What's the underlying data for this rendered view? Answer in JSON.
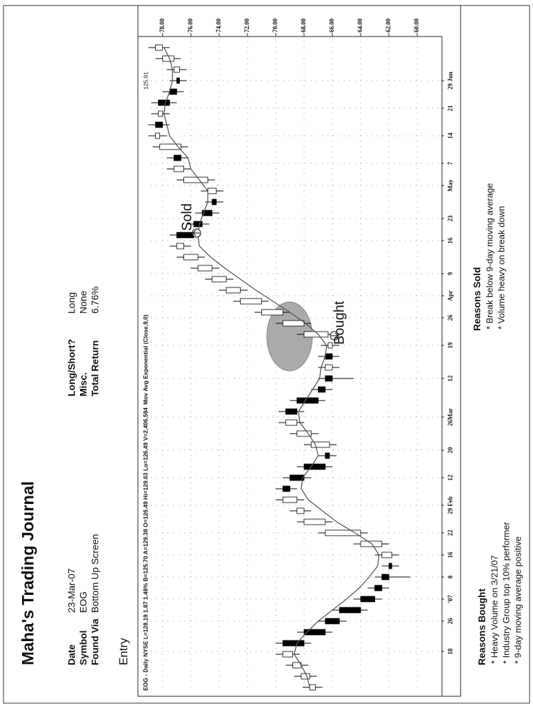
{
  "header": {
    "title": "Maha's Trading Journal"
  },
  "fields": [
    {
      "label": "Date",
      "value": "23-Mar-07"
    },
    {
      "label": "Symbol",
      "value": "EOG"
    },
    {
      "label": "Found Via",
      "value": "Bottom Up Screen"
    },
    {
      "label": "Long/Short?",
      "value": "Long"
    },
    {
      "label": "Misc.",
      "value": "None"
    },
    {
      "label": "Total Return",
      "value": "6.76%"
    }
  ],
  "entry_heading": "Entry",
  "chart_data": {
    "type": "candlestick",
    "title": "EOG - Daily NYSE L=128.19 1.87 1.48% B=125.70 A=129.38 O=126.49 Hi=129.63 Lo=126.49 V=2,406,594",
    "ma_label": "Mov Avg Exponential (Close,9,0)",
    "ma_value_label": "125.91",
    "x": [
      0,
      2,
      4,
      6,
      8,
      10,
      12,
      14,
      16,
      18,
      20,
      22,
      24,
      26,
      28,
      30,
      32,
      34,
      36,
      38,
      40,
      42,
      44,
      46,
      48,
      50,
      52,
      54,
      56,
      58,
      60,
      62,
      64,
      66,
      68,
      70,
      72,
      74,
      76,
      78,
      80,
      82,
      84,
      86,
      88,
      90,
      92,
      94,
      96,
      98,
      100,
      102,
      104,
      106,
      108,
      110,
      112,
      114,
      116
    ],
    "open": [
      67.2,
      67.6,
      68.2,
      68.8,
      69.5,
      68,
      66.5,
      65.5,
      64,
      63,
      62.5,
      62,
      61.8,
      62.5,
      64,
      66.5,
      68,
      68.5,
      69.5,
      69,
      68,
      66.5,
      66.2,
      67.5,
      68.5,
      69.3,
      68.5,
      67,
      66.5,
      66,
      66.5,
      66,
      66.3,
      68,
      69.5,
      71,
      72.5,
      73.5,
      74.5,
      75.5,
      76.5,
      77,
      75.8,
      75.2,
      74.5,
      74.2,
      74.8,
      76.5,
      77.2,
      76.7,
      78.2,
      78.5,
      78,
      78.3,
      77.5,
      77,
      76.8,
      77.2,
      78
    ],
    "high": [
      68.1,
      68.7,
      69.3,
      70,
      70,
      68.5,
      67,
      66,
      64.5,
      63.5,
      63,
      62.5,
      63,
      64.5,
      67,
      68.5,
      69,
      70,
      70,
      69.5,
      68.5,
      67,
      68,
      69,
      69.8,
      69.8,
      69,
      67.5,
      67,
      67,
      67,
      66.8,
      68.5,
      70,
      71.5,
      73,
      74,
      75,
      76,
      77,
      77.5,
      77.5,
      76.3,
      75.7,
      75,
      75.3,
      77,
      77.7,
      77.7,
      78.7,
      79,
      79,
      78.8,
      78.8,
      78,
      77.5,
      77.7,
      78.5,
      79
    ],
    "low": [
      66.7,
      67.1,
      67.7,
      68.3,
      67.5,
      66,
      65,
      63.5,
      62.5,
      62,
      60.5,
      61.3,
      61.3,
      62,
      63.5,
      66,
      67.5,
      68,
      68.5,
      67.5,
      66,
      65.7,
      65.7,
      67,
      68,
      68,
      66.5,
      66,
      64.5,
      65.5,
      65.5,
      65.5,
      65.8,
      67.5,
      69,
      70.5,
      72,
      73,
      74,
      75,
      76,
      75.3,
      74.7,
      74,
      73.7,
      73.7,
      74.3,
      76,
      76.2,
      76.2,
      77.7,
      77.5,
      77.5,
      77,
      76.5,
      76.3,
      76.3,
      76.7,
      77.5
    ],
    "close": [
      67.6,
      68.2,
      68.8,
      69.5,
      68,
      66.5,
      65.5,
      64,
      63,
      62.5,
      62,
      61.8,
      62.5,
      64,
      66.5,
      68,
      68.5,
      69.5,
      69,
      68,
      66.5,
      66.2,
      67.5,
      68.5,
      69.3,
      68.5,
      67,
      66.5,
      66,
      66.5,
      66,
      66.3,
      68,
      69.5,
      71,
      72.5,
      73.5,
      74.5,
      75.5,
      76.5,
      77,
      75.8,
      75.2,
      74.5,
      74.2,
      74.8,
      76.5,
      77.2,
      76.7,
      78.2,
      78.5,
      78,
      78.3,
      77.5,
      77,
      76.8,
      77.2,
      78,
      78.5
    ],
    "up_color": "#ffffff",
    "down_color": "#000000",
    "ma": {
      "color": "#555555",
      "values": [
        67.6,
        67.8,
        68.2,
        68.7,
        68.5,
        67.8,
        67,
        66,
        65,
        64.1,
        63.4,
        62.8,
        62.7,
        63.2,
        64.4,
        65.7,
        66.7,
        67.7,
        68.2,
        68.1,
        67.5,
        67,
        67.2,
        67.7,
        68.3,
        68.4,
        67.9,
        67.4,
        66.9,
        66.8,
        66.5,
        66.4,
        67,
        67.9,
        69,
        70.2,
        71.4,
        72.5,
        73.6,
        74.6,
        75.4,
        75.5,
        75.4,
        75.1,
        74.8,
        74.8,
        75.4,
        76,
        76.2,
        76.9,
        77.5,
        77.7,
        77.9,
        77.8,
        77.5,
        77.3,
        77.3,
        77.5,
        77.9
      ]
    },
    "xlim": [
      0,
      118
    ],
    "xticks": [
      {
        "value": 6.5,
        "label": "18"
      },
      {
        "value": 12,
        "label": "26"
      },
      {
        "value": 16,
        "label": "'07"
      },
      {
        "value": 20,
        "label": "8"
      },
      {
        "value": 24,
        "label": "16"
      },
      {
        "value": 28,
        "label": "22"
      },
      {
        "value": 33,
        "label": "29 Feb"
      },
      {
        "value": 38,
        "label": "12"
      },
      {
        "value": 43,
        "label": "20"
      },
      {
        "value": 49,
        "label": "26Mar"
      },
      {
        "value": 56,
        "label": "12"
      },
      {
        "value": 62,
        "label": "19"
      },
      {
        "value": 67,
        "label": "26"
      },
      {
        "value": 71,
        "label": "Apr"
      },
      {
        "value": 75,
        "label": "9"
      },
      {
        "value": 81,
        "label": "16"
      },
      {
        "value": 85,
        "label": "23"
      },
      {
        "value": 91,
        "label": "May"
      },
      {
        "value": 95,
        "label": "7"
      },
      {
        "value": 100,
        "label": "14"
      },
      {
        "value": 105,
        "label": "21"
      },
      {
        "value": 110,
        "label": "29 Jun"
      }
    ],
    "ylim": [
      58.3,
      79.5
    ],
    "yticks": [
      {
        "value": 60,
        "label": "60.00"
      },
      {
        "value": 62,
        "label": "62.00"
      },
      {
        "value": 64,
        "label": "64.00"
      },
      {
        "value": 66,
        "label": "66.00"
      },
      {
        "value": 68,
        "label": "68.00"
      },
      {
        "value": 70,
        "label": "70.00"
      },
      {
        "value": 72,
        "label": "72.00"
      },
      {
        "value": 74,
        "label": "74.00"
      },
      {
        "value": 76,
        "label": "76.00"
      },
      {
        "value": 78,
        "label": "78.00"
      }
    ],
    "grid": true,
    "annotations": [
      "Sold",
      "Bought"
    ]
  },
  "reasons_bought": {
    "heading": "Reasons Bought",
    "items": [
      "* Heavy Volume on 3/21/07",
      "* Industry Group top 10% performer",
      "* 9-day moving average positive"
    ]
  },
  "reasons_sold": {
    "heading": "Reasons Sold",
    "items": [
      "* Break below 9-day moving average",
      "* Volume heavy on break down"
    ]
  }
}
